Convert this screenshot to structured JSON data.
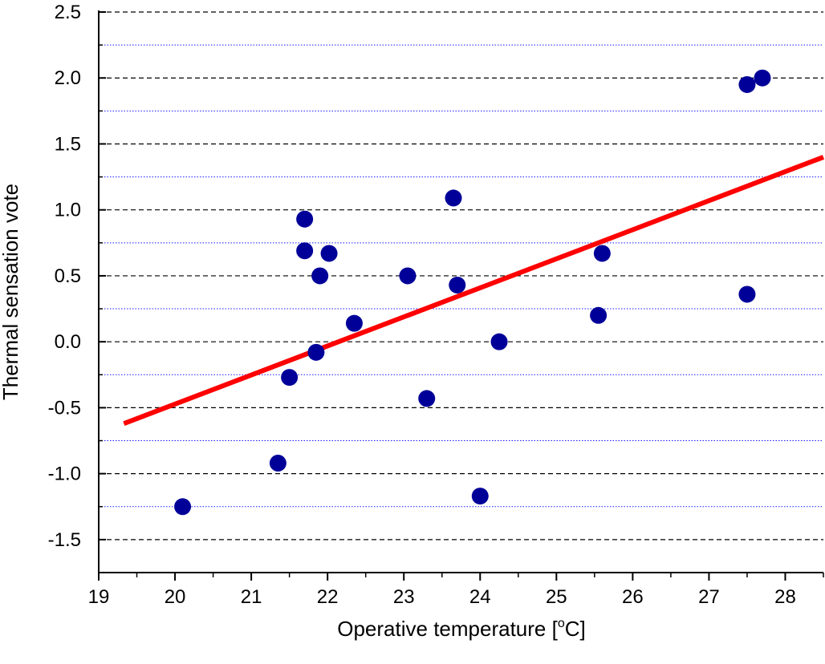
{
  "chart_data": {
    "type": "scatter",
    "title": "",
    "xlabel_prefix": "Operative temperature [",
    "xlabel_sup": "o",
    "xlabel_suffix": "C]",
    "ylabel": "Thermal sensation vote",
    "xlim": [
      19,
      28.5
    ],
    "ylim": [
      -1.75,
      2.5
    ],
    "xticks": [
      19,
      20,
      21,
      22,
      23,
      24,
      25,
      26,
      27,
      28
    ],
    "yticks": [
      -1.5,
      -1.0,
      -0.5,
      0.0,
      0.5,
      1.0,
      1.5,
      2.0,
      2.5
    ],
    "ytick_labels": [
      "-1.5",
      "-1.0",
      "-0.5",
      "0.0",
      "0.5",
      "1.0",
      "1.5",
      "2.0",
      "2.5"
    ],
    "major_grid_y": [
      -1.5,
      -1.0,
      -0.5,
      0.0,
      0.5,
      1.0,
      1.5,
      2.0,
      2.5
    ],
    "minor_grid_y": [
      -1.25,
      -0.75,
      -0.25,
      0.25,
      0.75,
      1.25,
      1.75,
      2.25
    ],
    "grid": true,
    "series": [
      {
        "marker_color": "#000099",
        "points": [
          {
            "x": 20.1,
            "y": -1.25
          },
          {
            "x": 21.35,
            "y": -0.92
          },
          {
            "x": 21.5,
            "y": -0.27
          },
          {
            "x": 21.7,
            "y": 0.93
          },
          {
            "x": 21.7,
            "y": 0.69
          },
          {
            "x": 21.85,
            "y": -0.08
          },
          {
            "x": 21.9,
            "y": 0.5
          },
          {
            "x": 22.02,
            "y": 0.67
          },
          {
            "x": 22.35,
            "y": 0.14
          },
          {
            "x": 23.05,
            "y": 0.5
          },
          {
            "x": 23.3,
            "y": -0.43
          },
          {
            "x": 23.65,
            "y": 1.09
          },
          {
            "x": 23.7,
            "y": 0.43
          },
          {
            "x": 24.0,
            "y": -1.17
          },
          {
            "x": 24.25,
            "y": 0.0
          },
          {
            "x": 25.55,
            "y": 0.2
          },
          {
            "x": 25.6,
            "y": 0.67
          },
          {
            "x": 27.5,
            "y": 0.36
          },
          {
            "x": 27.5,
            "y": 1.95
          },
          {
            "x": 27.7,
            "y": 2.0
          }
        ]
      }
    ],
    "trendline": {
      "color": "#ff0000",
      "x": [
        19.33,
        28.5
      ],
      "y": [
        -0.62,
        1.4
      ]
    },
    "colors": {
      "major_grid": "#000000",
      "minor_grid": "#1a1aff",
      "axis": "#000000"
    }
  }
}
